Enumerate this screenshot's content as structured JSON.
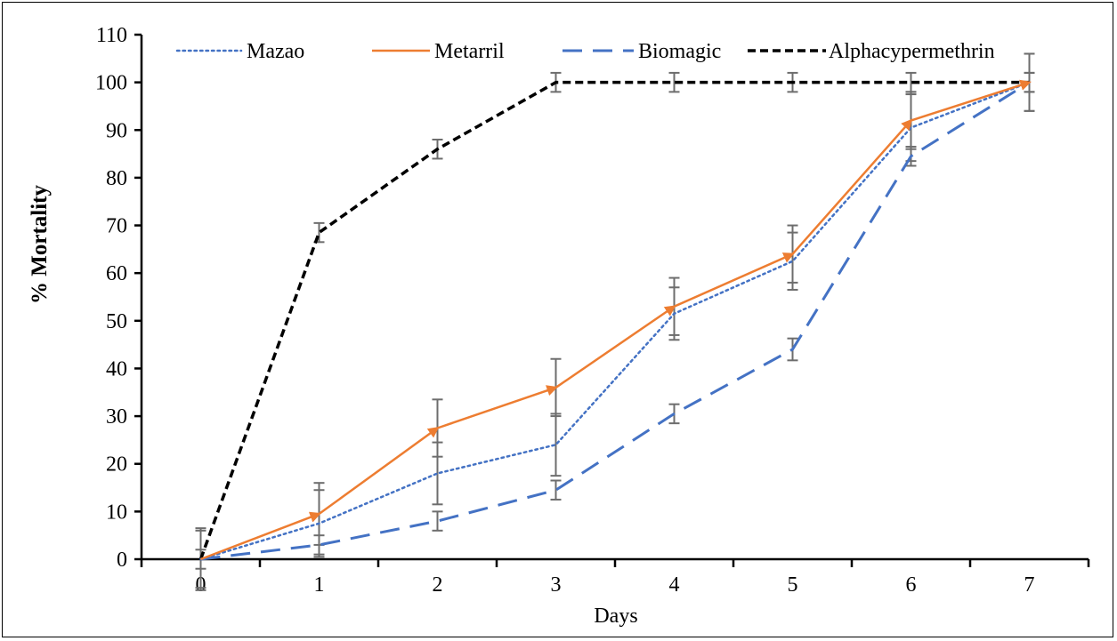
{
  "chart_data": {
    "type": "line",
    "title": "",
    "xlabel": "Days",
    "ylabel": "% Mortality",
    "x": [
      0,
      1,
      2,
      3,
      4,
      5,
      6,
      7
    ],
    "xlim": [
      0,
      7
    ],
    "ylim": [
      0,
      110
    ],
    "yticks": [
      0,
      10,
      20,
      30,
      40,
      50,
      60,
      70,
      80,
      90,
      100,
      110
    ],
    "grid": false,
    "legend": "top",
    "series": [
      {
        "name": "Mazao",
        "color": "#4472C4",
        "style": "dotted",
        "values": [
          0,
          7.5,
          18,
          24,
          51.5,
          62.5,
          90.5,
          100
        ],
        "errors": [
          6.5,
          7,
          6.5,
          6.5,
          5.5,
          6,
          7,
          6
        ]
      },
      {
        "name": "Metarril",
        "color": "#ED7D31",
        "style": "solid-arrow",
        "values": [
          0,
          9.5,
          27.5,
          36,
          53,
          64,
          92,
          100
        ],
        "errors": [
          6,
          6.5,
          6,
          6,
          6,
          6,
          6,
          6
        ]
      },
      {
        "name": "Biomagic",
        "color": "#4472C4",
        "style": "long-dash",
        "values": [
          0,
          3,
          8,
          14.5,
          30.5,
          44,
          84.5,
          100
        ],
        "errors": [
          2,
          2,
          2,
          2,
          2,
          2.3,
          2,
          2
        ]
      },
      {
        "name": "Alphacypermethrin",
        "color": "#000000",
        "style": "short-dash",
        "values": [
          0,
          68.5,
          86,
          100,
          100,
          100,
          100,
          100
        ],
        "errors": [
          0,
          2,
          2,
          2,
          2,
          2,
          2,
          2
        ]
      }
    ]
  }
}
